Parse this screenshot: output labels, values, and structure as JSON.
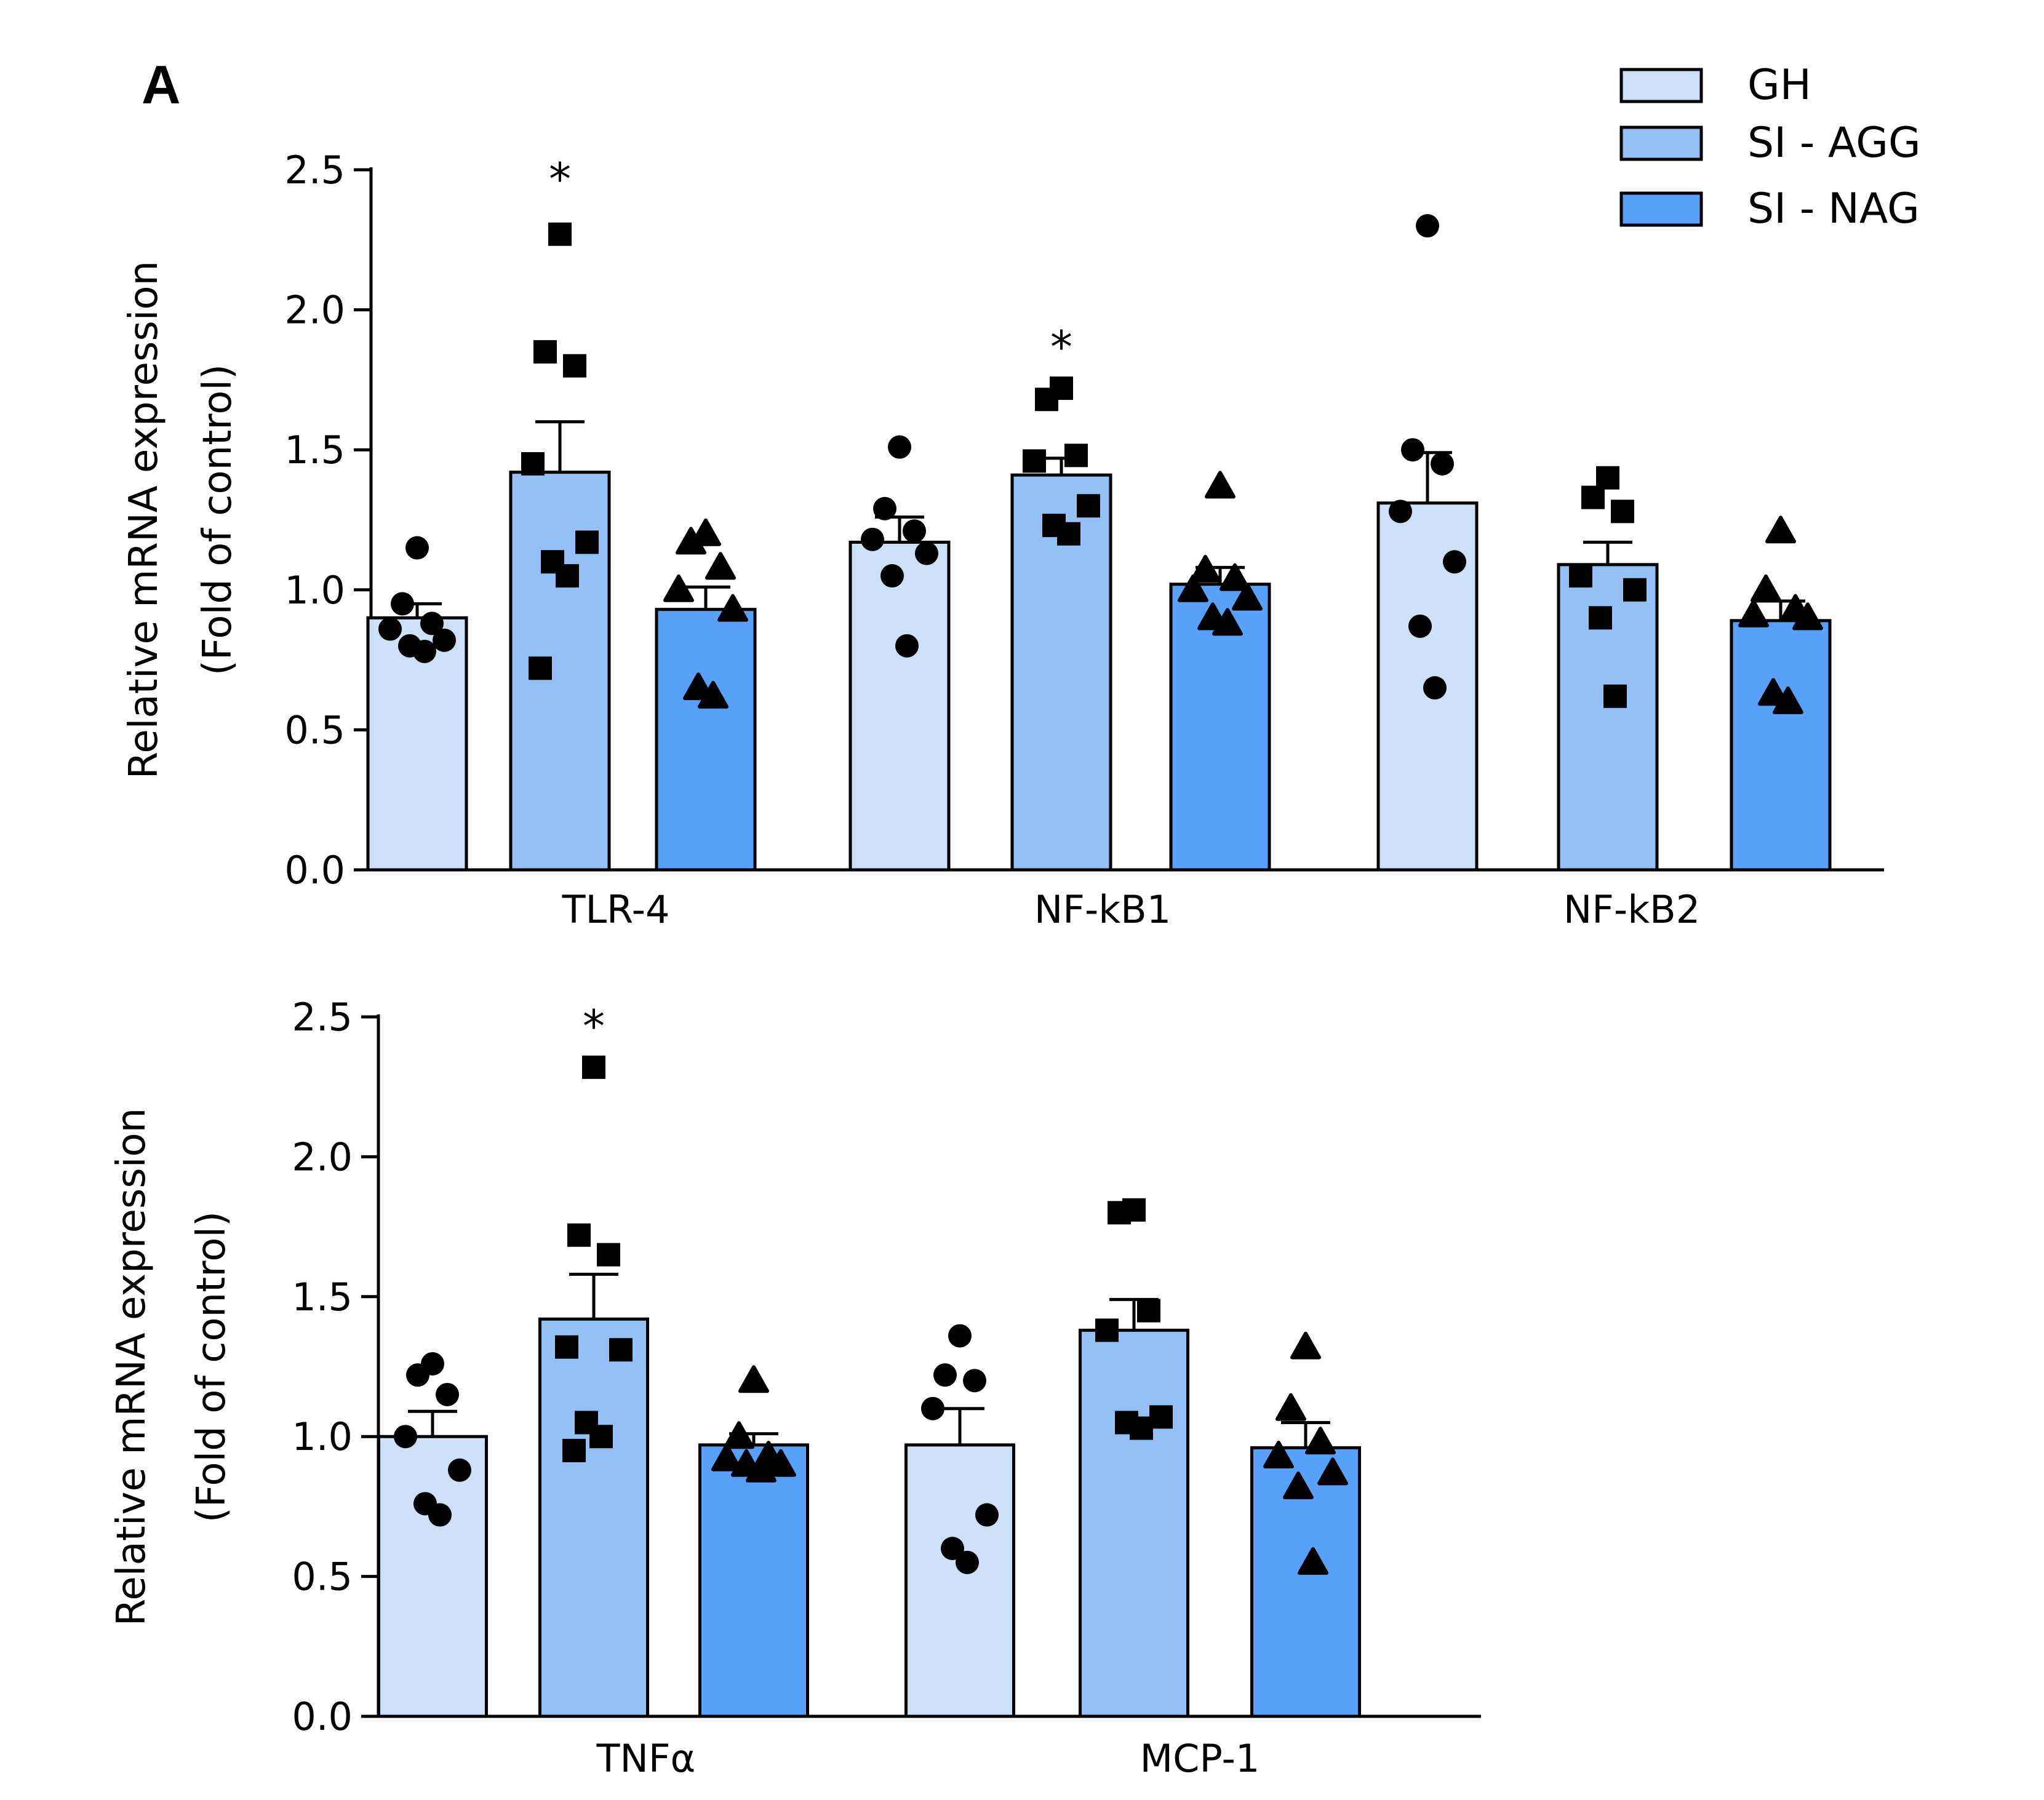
{
  "panel_label": "A",
  "legend": [
    {
      "name": "GH",
      "color": "#cce0f8"
    },
    {
      "name": "SI - AGG",
      "color": "#93c1f6"
    },
    {
      "name": "SI - NAG",
      "color": "#57a1fa"
    }
  ],
  "colors": {
    "edge": "#000000",
    "points": "#000000"
  },
  "chart_data": [
    {
      "type": "bar",
      "title": "",
      "xlabel": "",
      "ylabel": "Relative mRNA expression",
      "ylabel2": "(Fold of control)",
      "ylim": [
        0,
        2.5
      ],
      "yticks": [
        "0.0",
        "0.5",
        "1.0",
        "1.5",
        "2.0",
        "2.5"
      ],
      "categories": [
        "TLR-4",
        "NF-kB1",
        "NF-kB2"
      ],
      "series": [
        {
          "name": "GH",
          "marker": "circle",
          "values": [
            0.9,
            1.17,
            1.31
          ],
          "sem": [
            0.05,
            0.09,
            0.18
          ],
          "points": [
            [
              1.15,
              0.95,
              0.88,
              0.86,
              0.82,
              0.8,
              0.78
            ],
            [
              1.51,
              1.29,
              1.21,
              1.18,
              1.13,
              1.05,
              0.8
            ],
            [
              2.3,
              1.5,
              1.45,
              1.28,
              1.1,
              0.87,
              0.65
            ]
          ]
        },
        {
          "name": "SI - AGG",
          "marker": "square",
          "values": [
            1.42,
            1.41,
            1.09
          ],
          "sem": [
            0.18,
            0.06,
            0.08
          ],
          "points": [
            [
              2.27,
              1.85,
              1.8,
              1.45,
              1.17,
              1.1,
              1.05,
              0.72
            ],
            [
              1.72,
              1.68,
              1.48,
              1.46,
              1.3,
              1.23,
              1.2
            ],
            [
              1.4,
              1.33,
              1.28,
              1.05,
              1.0,
              0.9,
              0.62
            ]
          ]
        },
        {
          "name": "SI - NAG",
          "marker": "triangle",
          "values": [
            0.93,
            1.02,
            0.89
          ],
          "sem": [
            0.08,
            0.06,
            0.07
          ],
          "points": [
            [
              1.2,
              1.17,
              1.08,
              1.0,
              0.93,
              0.65,
              0.62
            ],
            [
              1.37,
              1.07,
              1.04,
              1.0,
              0.97,
              0.9,
              0.88
            ],
            [
              1.21,
              1.0,
              0.93,
              0.91,
              0.9,
              0.63,
              0.6
            ]
          ]
        }
      ],
      "annotations": [
        {
          "text": "*",
          "category": 0,
          "series": 1,
          "y": 2.5
        },
        {
          "text": "*",
          "category": 1,
          "series": 1,
          "y": 1.9
        }
      ]
    },
    {
      "type": "bar",
      "title": "",
      "xlabel": "",
      "ylabel": "Relative mRNA expression",
      "ylabel2": "(Fold of control)",
      "ylim": [
        0,
        2.5
      ],
      "yticks": [
        "0.0",
        "0.5",
        "1.0",
        "1.5",
        "2.0",
        "2.5"
      ],
      "categories": [
        "TNFα",
        "MCP-1"
      ],
      "series": [
        {
          "name": "GH",
          "marker": "circle",
          "values": [
            1.0,
            0.97
          ],
          "sem": [
            0.09,
            0.13
          ],
          "points": [
            [
              1.26,
              1.22,
              1.15,
              1.0,
              0.88,
              0.76,
              0.72
            ],
            [
              1.36,
              1.22,
              1.2,
              1.1,
              0.72,
              0.6,
              0.55
            ]
          ]
        },
        {
          "name": "SI - AGG",
          "marker": "square",
          "values": [
            1.42,
            1.38
          ],
          "sem": [
            0.16,
            0.11
          ],
          "points": [
            [
              2.32,
              1.72,
              1.65,
              1.32,
              1.31,
              1.05,
              1.0,
              0.95
            ],
            [
              1.81,
              1.8,
              1.45,
              1.38,
              1.07,
              1.05,
              1.03
            ]
          ]
        },
        {
          "name": "SI - NAG",
          "marker": "triangle",
          "values": [
            0.97,
            0.96
          ],
          "sem": [
            0.04,
            0.09
          ],
          "points": [
            [
              1.2,
              1.0,
              0.93,
              0.92,
              0.9,
              0.9,
              0.88
            ],
            [
              1.32,
              1.1,
              0.98,
              0.93,
              0.87,
              0.82,
              0.55
            ]
          ]
        }
      ],
      "annotations": [
        {
          "text": "*",
          "category": 0,
          "series": 1,
          "y": 2.5
        }
      ]
    }
  ]
}
